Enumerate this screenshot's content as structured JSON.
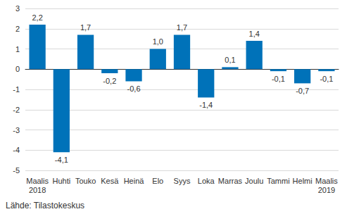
{
  "chart_data": {
    "type": "bar",
    "categories": [
      "Maalis\n2018",
      "Huhti",
      "Touko",
      "Kesä",
      "Heinä",
      "Elo",
      "Syys",
      "Loka",
      "Marras",
      "Joulu",
      "Tammi",
      "Helmi",
      "Maalis\n2019"
    ],
    "values": [
      2.2,
      -4.1,
      1.7,
      -0.2,
      -0.6,
      1.0,
      1.7,
      -1.4,
      0.1,
      1.4,
      -0.1,
      -0.7,
      -0.1
    ],
    "value_labels": [
      "2,2",
      "-4,1",
      "1,7",
      "-0,2",
      "-0,6",
      "1,0",
      "1,7",
      "-1,4",
      "0,1",
      "1,4",
      "-0,1",
      "-0,7",
      "-0,1"
    ],
    "data_labels": true,
    "color": "#0072b9",
    "ylim": [
      -5,
      3
    ],
    "yticks": [
      -5,
      -4,
      -3,
      -2,
      -1,
      0,
      1,
      2,
      3
    ],
    "grid": true,
    "source": "Lähde: Tilastokeskus"
  }
}
